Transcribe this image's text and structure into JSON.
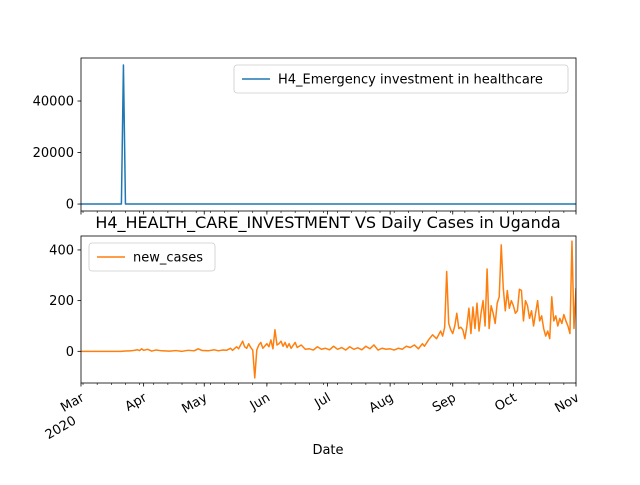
{
  "chart_data": [
    {
      "type": "line",
      "title": "",
      "xlabel": "",
      "ylabel": "",
      "x_range": [
        "2020-03-01",
        "2020-11-01"
      ],
      "ylim": [
        -2700,
        56700
      ],
      "y_ticks": [
        0,
        20000,
        40000
      ],
      "y_tick_labels": [
        "0",
        "20000",
        "40000"
      ],
      "grid": false,
      "legend_position": "top-right",
      "series": [
        {
          "name": "H4_Emergency investment in healthcare",
          "color": "#1f77b4",
          "points": [
            [
              "2020-03-01",
              0
            ],
            [
              "2020-03-20",
              0
            ],
            [
              "2020-03-21",
              0
            ],
            [
              "2020-03-22",
              54000
            ],
            [
              "2020-03-23",
              0
            ],
            [
              "2020-11-01",
              0
            ]
          ]
        }
      ]
    },
    {
      "type": "line",
      "title": "H4_HEALTH_CARE_INVESTMENT VS Daily Cases in Uganda",
      "xlabel": "Date",
      "ylabel": "",
      "x_range": [
        "2020-03-01",
        "2020-11-01"
      ],
      "ylim": [
        -125,
        455
      ],
      "y_ticks": [
        0,
        200,
        400
      ],
      "y_tick_labels": [
        "0",
        "200",
        "400"
      ],
      "x_tick_labels": [
        {
          "date": "2020-03-01",
          "label": "Mar",
          "sublabel": "2020"
        },
        {
          "date": "2020-04-01",
          "label": "Apr"
        },
        {
          "date": "2020-05-01",
          "label": "May"
        },
        {
          "date": "2020-06-01",
          "label": "Jun"
        },
        {
          "date": "2020-07-01",
          "label": "Jul"
        },
        {
          "date": "2020-08-01",
          "label": "Aug"
        },
        {
          "date": "2020-09-01",
          "label": "Sep"
        },
        {
          "date": "2020-10-01",
          "label": "Oct"
        },
        {
          "date": "2020-11-01",
          "label": "Nov"
        }
      ],
      "grid": false,
      "legend_position": "top-left",
      "series": [
        {
          "name": "new_cases",
          "color": "#ff7f0e",
          "points": [
            [
              "2020-03-01",
              0
            ],
            [
              "2020-03-21",
              0
            ],
            [
              "2020-03-22",
              1
            ],
            [
              "2020-03-26",
              2
            ],
            [
              "2020-03-29",
              6
            ],
            [
              "2020-03-30",
              3
            ],
            [
              "2020-03-31",
              10
            ],
            [
              "2020-04-01",
              4
            ],
            [
              "2020-04-03",
              8
            ],
            [
              "2020-04-05",
              1
            ],
            [
              "2020-04-07",
              5
            ],
            [
              "2020-04-10",
              2
            ],
            [
              "2020-04-14",
              1
            ],
            [
              "2020-04-17",
              3
            ],
            [
              "2020-04-20",
              0
            ],
            [
              "2020-04-23",
              4
            ],
            [
              "2020-04-26",
              2
            ],
            [
              "2020-04-28",
              10
            ],
            [
              "2020-04-30",
              3
            ],
            [
              "2020-05-03",
              2
            ],
            [
              "2020-05-06",
              6
            ],
            [
              "2020-05-08",
              2
            ],
            [
              "2020-05-10",
              5
            ],
            [
              "2020-05-12",
              4
            ],
            [
              "2020-05-14",
              12
            ],
            [
              "2020-05-15",
              4
            ],
            [
              "2020-05-17",
              18
            ],
            [
              "2020-05-18",
              10
            ],
            [
              "2020-05-20",
              40
            ],
            [
              "2020-05-21",
              18
            ],
            [
              "2020-05-22",
              12
            ],
            [
              "2020-05-23",
              30
            ],
            [
              "2020-05-24",
              15
            ],
            [
              "2020-05-25",
              5
            ],
            [
              "2020-05-26",
              -105
            ],
            [
              "2020-05-27",
              5
            ],
            [
              "2020-05-28",
              25
            ],
            [
              "2020-05-29",
              35
            ],
            [
              "2020-05-30",
              12
            ],
            [
              "2020-06-01",
              30
            ],
            [
              "2020-06-02",
              18
            ],
            [
              "2020-06-03",
              45
            ],
            [
              "2020-06-04",
              10
            ],
            [
              "2020-06-05",
              85
            ],
            [
              "2020-06-06",
              25
            ],
            [
              "2020-06-07",
              30
            ],
            [
              "2020-06-08",
              40
            ],
            [
              "2020-06-09",
              20
            ],
            [
              "2020-06-10",
              35
            ],
            [
              "2020-06-11",
              15
            ],
            [
              "2020-06-12",
              30
            ],
            [
              "2020-06-13",
              12
            ],
            [
              "2020-06-15",
              35
            ],
            [
              "2020-06-16",
              15
            ],
            [
              "2020-06-18",
              25
            ],
            [
              "2020-06-20",
              8
            ],
            [
              "2020-06-22",
              10
            ],
            [
              "2020-06-24",
              5
            ],
            [
              "2020-06-26",
              18
            ],
            [
              "2020-06-28",
              8
            ],
            [
              "2020-06-30",
              12
            ],
            [
              "2020-07-02",
              6
            ],
            [
              "2020-07-04",
              20
            ],
            [
              "2020-07-06",
              8
            ],
            [
              "2020-07-08",
              15
            ],
            [
              "2020-07-10",
              5
            ],
            [
              "2020-07-12",
              18
            ],
            [
              "2020-07-14",
              8
            ],
            [
              "2020-07-16",
              14
            ],
            [
              "2020-07-18",
              6
            ],
            [
              "2020-07-20",
              20
            ],
            [
              "2020-07-22",
              10
            ],
            [
              "2020-07-24",
              25
            ],
            [
              "2020-07-26",
              5
            ],
            [
              "2020-07-28",
              12
            ],
            [
              "2020-07-30",
              8
            ],
            [
              "2020-08-01",
              10
            ],
            [
              "2020-08-03",
              5
            ],
            [
              "2020-08-05",
              12
            ],
            [
              "2020-08-07",
              8
            ],
            [
              "2020-08-09",
              20
            ],
            [
              "2020-08-11",
              15
            ],
            [
              "2020-08-13",
              25
            ],
            [
              "2020-08-15",
              10
            ],
            [
              "2020-08-17",
              30
            ],
            [
              "2020-08-18",
              20
            ],
            [
              "2020-08-20",
              45
            ],
            [
              "2020-08-22",
              65
            ],
            [
              "2020-08-24",
              50
            ],
            [
              "2020-08-26",
              80
            ],
            [
              "2020-08-27",
              60
            ],
            [
              "2020-08-28",
              95
            ],
            [
              "2020-08-29",
              315
            ],
            [
              "2020-08-30",
              110
            ],
            [
              "2020-08-31",
              85
            ],
            [
              "2020-09-01",
              70
            ],
            [
              "2020-09-02",
              100
            ],
            [
              "2020-09-03",
              150
            ],
            [
              "2020-09-04",
              90
            ],
            [
              "2020-09-05",
              95
            ],
            [
              "2020-09-06",
              85
            ],
            [
              "2020-09-07",
              50
            ],
            [
              "2020-09-08",
              100
            ],
            [
              "2020-09-09",
              170
            ],
            [
              "2020-09-10",
              70
            ],
            [
              "2020-09-11",
              175
            ],
            [
              "2020-09-12",
              90
            ],
            [
              "2020-09-13",
              190
            ],
            [
              "2020-09-14",
              80
            ],
            [
              "2020-09-15",
              150
            ],
            [
              "2020-09-16",
              200
            ],
            [
              "2020-09-17",
              100
            ],
            [
              "2020-09-18",
              325
            ],
            [
              "2020-09-19",
              90
            ],
            [
              "2020-09-20",
              180
            ],
            [
              "2020-09-21",
              150
            ],
            [
              "2020-09-22",
              110
            ],
            [
              "2020-09-23",
              190
            ],
            [
              "2020-09-24",
              215
            ],
            [
              "2020-09-25",
              420
            ],
            [
              "2020-09-26",
              250
            ],
            [
              "2020-09-27",
              160
            ],
            [
              "2020-09-28",
              240
            ],
            [
              "2020-09-29",
              170
            ],
            [
              "2020-09-30",
              200
            ],
            [
              "2020-10-01",
              180
            ],
            [
              "2020-10-02",
              150
            ],
            [
              "2020-10-03",
              160
            ],
            [
              "2020-10-04",
              245
            ],
            [
              "2020-10-05",
              240
            ],
            [
              "2020-10-06",
              120
            ],
            [
              "2020-10-07",
              200
            ],
            [
              "2020-10-08",
              180
            ],
            [
              "2020-10-09",
              130
            ],
            [
              "2020-10-10",
              160
            ],
            [
              "2020-10-11",
              100
            ],
            [
              "2020-10-12",
              150
            ],
            [
              "2020-10-13",
              200
            ],
            [
              "2020-10-14",
              120
            ],
            [
              "2020-10-15",
              140
            ],
            [
              "2020-10-16",
              90
            ],
            [
              "2020-10-17",
              60
            ],
            [
              "2020-10-18",
              80
            ],
            [
              "2020-10-19",
              50
            ],
            [
              "2020-10-20",
              215
            ],
            [
              "2020-10-21",
              120
            ],
            [
              "2020-10-22",
              140
            ],
            [
              "2020-10-23",
              100
            ],
            [
              "2020-10-24",
              130
            ],
            [
              "2020-10-25",
              110
            ],
            [
              "2020-10-26",
              145
            ],
            [
              "2020-10-27",
              120
            ],
            [
              "2020-10-28",
              100
            ],
            [
              "2020-10-29",
              70
            ],
            [
              "2020-10-30",
              435
            ],
            [
              "2020-10-31",
              90
            ],
            [
              "2020-11-01",
              250
            ]
          ]
        }
      ]
    }
  ]
}
